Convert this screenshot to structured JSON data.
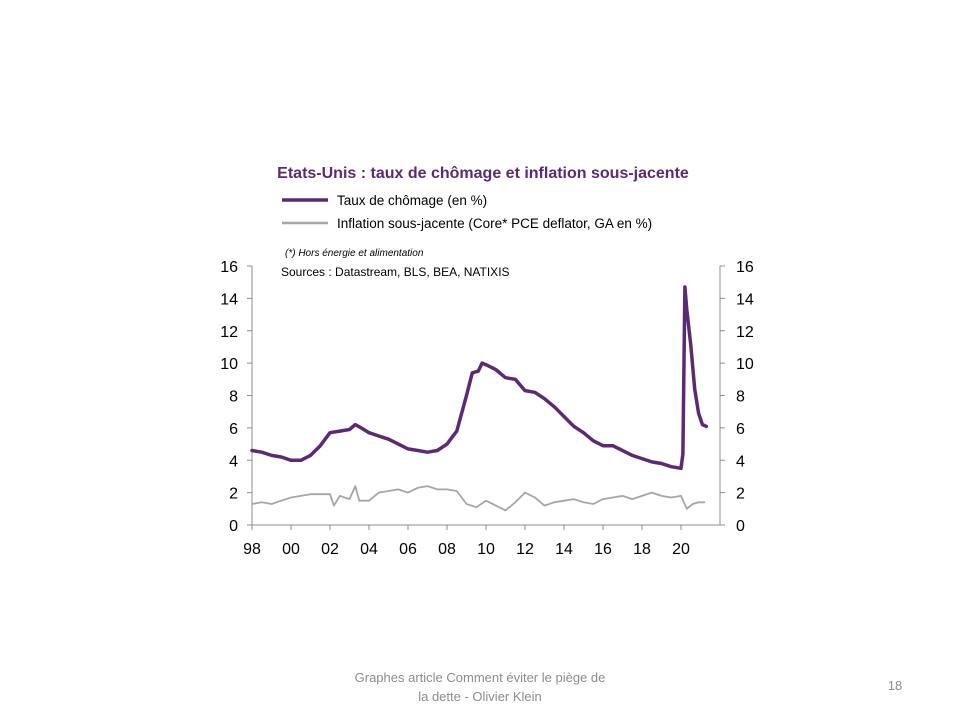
{
  "chart_data": {
    "type": "line",
    "title": "Etats-Unis : taux de chômage et inflation sous-jacente",
    "note": "(*) Hors énergie et alimentation",
    "sources": "Sources : Datastream, BLS, BEA, NATIXIS",
    "x_tick_labels": [
      "98",
      "00",
      "02",
      "04",
      "06",
      "08",
      "10",
      "12",
      "14",
      "16",
      "18",
      "20"
    ],
    "x_tick_years": [
      1998,
      2000,
      2002,
      2004,
      2006,
      2008,
      2010,
      2012,
      2014,
      2016,
      2018,
      2020
    ],
    "xlim": [
      1998,
      2022
    ],
    "ylim": [
      0,
      16
    ],
    "y_ticks": [
      0,
      2,
      4,
      6,
      8,
      10,
      12,
      14,
      16
    ],
    "y_tick_labels": [
      "0",
      "2",
      "4",
      "6",
      "8",
      "10",
      "12",
      "14",
      "16"
    ],
    "y2_tick_labels": [
      "0",
      "2",
      "4",
      "6",
      "8",
      "10",
      "12",
      "14",
      "16"
    ],
    "legend_position": "top",
    "series": [
      {
        "name": "Taux de chômage (en %)",
        "color": "#5b2a73",
        "x": [
          1998.0,
          1998.5,
          1999.0,
          1999.5,
          2000.0,
          2000.5,
          2001.0,
          2001.5,
          2002.0,
          2002.5,
          2003.0,
          2003.3,
          2003.6,
          2004.0,
          2004.5,
          2005.0,
          2005.5,
          2006.0,
          2006.5,
          2007.0,
          2007.5,
          2008.0,
          2008.5,
          2009.0,
          2009.3,
          2009.6,
          2009.8,
          2010.0,
          2010.5,
          2011.0,
          2011.5,
          2012.0,
          2012.5,
          2013.0,
          2013.5,
          2014.0,
          2014.5,
          2015.0,
          2015.5,
          2016.0,
          2016.5,
          2017.0,
          2017.5,
          2018.0,
          2018.5,
          2019.0,
          2019.5,
          2020.0,
          2020.1,
          2020.2,
          2020.3,
          2020.5,
          2020.7,
          2020.9,
          2021.1,
          2021.3
        ],
        "values": [
          4.6,
          4.5,
          4.3,
          4.2,
          4.0,
          4.0,
          4.3,
          4.9,
          5.7,
          5.8,
          5.9,
          6.2,
          6.0,
          5.7,
          5.5,
          5.3,
          5.0,
          4.7,
          4.6,
          4.5,
          4.6,
          5.0,
          5.8,
          8.0,
          9.4,
          9.5,
          10.0,
          9.9,
          9.6,
          9.1,
          9.0,
          8.3,
          8.2,
          7.8,
          7.3,
          6.7,
          6.1,
          5.7,
          5.2,
          4.9,
          4.9,
          4.6,
          4.3,
          4.1,
          3.9,
          3.8,
          3.6,
          3.5,
          4.4,
          14.7,
          13.3,
          11.1,
          8.4,
          6.9,
          6.2,
          6.1
        ]
      },
      {
        "name": "Inflation sous-jacente (Core* PCE deflator, GA en %)",
        "color": "#a6a6a6",
        "x": [
          1998.0,
          1998.5,
          1999.0,
          1999.5,
          2000.0,
          2000.5,
          2001.0,
          2001.5,
          2002.0,
          2002.2,
          2002.5,
          2003.0,
          2003.3,
          2003.5,
          2004.0,
          2004.5,
          2005.0,
          2005.5,
          2006.0,
          2006.5,
          2007.0,
          2007.5,
          2008.0,
          2008.5,
          2009.0,
          2009.5,
          2010.0,
          2010.5,
          2011.0,
          2011.5,
          2012.0,
          2012.5,
          2013.0,
          2013.5,
          2014.0,
          2014.5,
          2015.0,
          2015.5,
          2016.0,
          2016.5,
          2017.0,
          2017.5,
          2018.0,
          2018.5,
          2019.0,
          2019.5,
          2020.0,
          2020.3,
          2020.6,
          2020.9,
          2021.2
        ],
        "values": [
          1.3,
          1.4,
          1.3,
          1.5,
          1.7,
          1.8,
          1.9,
          1.9,
          1.9,
          1.2,
          1.8,
          1.6,
          2.4,
          1.5,
          1.5,
          2.0,
          2.1,
          2.2,
          2.0,
          2.3,
          2.4,
          2.2,
          2.2,
          2.1,
          1.3,
          1.1,
          1.5,
          1.2,
          0.9,
          1.4,
          2.0,
          1.7,
          1.2,
          1.4,
          1.5,
          1.6,
          1.4,
          1.3,
          1.6,
          1.7,
          1.8,
          1.6,
          1.8,
          2.0,
          1.8,
          1.7,
          1.8,
          1.0,
          1.3,
          1.4,
          1.4
        ]
      }
    ]
  },
  "footer": {
    "caption_line1": "Graphes article Comment  éviter le piège de",
    "caption_line2": "la dette - Olivier Klein",
    "slide_number": "18"
  }
}
